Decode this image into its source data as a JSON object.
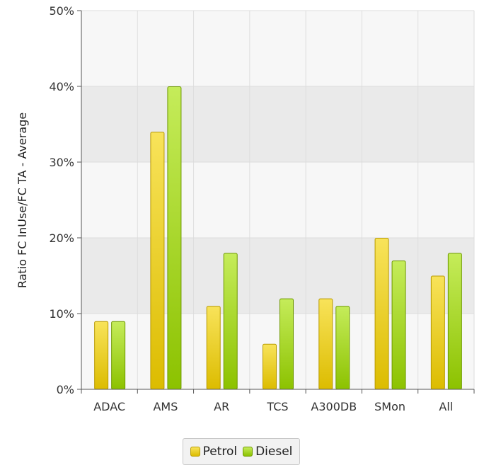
{
  "chart_data": {
    "type": "bar",
    "categories": [
      "ADAC",
      "AMS",
      "AR",
      "TCS",
      "A300DB",
      "SMon",
      "All"
    ],
    "series": [
      {
        "name": "Petrol",
        "values": [
          9,
          34,
          11,
          6,
          12,
          20,
          15
        ],
        "color_top": "#f8e35a",
        "color_bottom": "#dcbc00",
        "stroke": "#b89a00"
      },
      {
        "name": "Diesel",
        "values": [
          9,
          40,
          18,
          12,
          11,
          17,
          18
        ],
        "color_top": "#c5ec5a",
        "color_bottom": "#8cc200",
        "stroke": "#6f9a00"
      }
    ],
    "title": "",
    "xlabel": "",
    "ylabel": "Ratio FC InUse/FC TA - Average",
    "ylim": [
      0,
      50
    ],
    "y_ticks": [
      "0%",
      "10%",
      "20%",
      "30%",
      "40%",
      "50%"
    ],
    "grid": true,
    "legend_placement": "bottom-center"
  }
}
